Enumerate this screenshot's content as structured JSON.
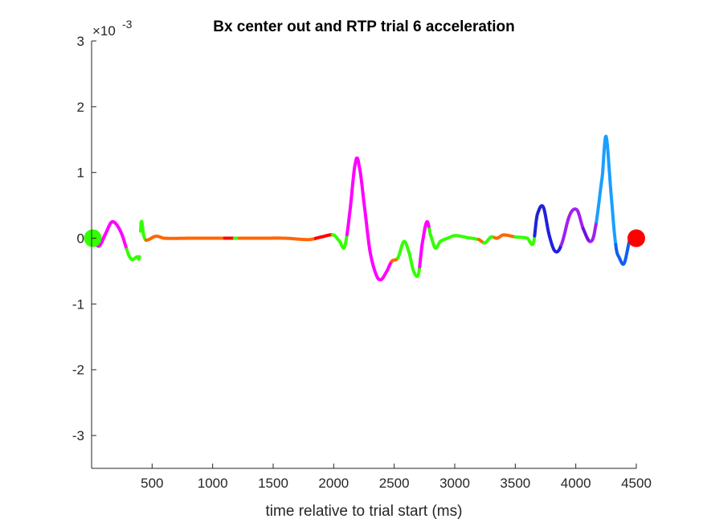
{
  "chart_data": {
    "type": "line",
    "title": "Bx  center out and RTP trial 6 acceleration",
    "xlabel": "time relative to trial start (ms)",
    "ylabel": "",
    "xlim": [
      0,
      4500
    ],
    "ylim": [
      -0.0035,
      0.003
    ],
    "y_exponent_label": "×10",
    "y_exponent": "-3",
    "xticks": [
      500,
      1000,
      1500,
      2000,
      2500,
      3000,
      3500,
      4000,
      4500
    ],
    "xtick_labels": [
      "500",
      "1000",
      "1500",
      "2000",
      "2500",
      "3000",
      "3500",
      "4000",
      "4500"
    ],
    "yticks": [
      -3,
      -2,
      -1,
      0,
      1,
      2,
      3
    ],
    "ytick_labels": [
      "-3",
      "-2",
      "-1",
      "0",
      "1",
      "2",
      "3"
    ],
    "grid": false,
    "legend": "none",
    "y_units_scale": 0.001,
    "curve_points": [
      [
        0,
        0
      ],
      [
        60,
        -0.12
      ],
      [
        110,
        0.05
      ],
      [
        170,
        0.25
      ],
      [
        240,
        0.1
      ],
      [
        320,
        -0.3
      ],
      [
        380,
        -0.28
      ],
      [
        395,
        -0.28
      ],
      [
        410,
        0.25
      ],
      [
        430,
        0.05
      ],
      [
        450,
        -0.03
      ],
      [
        530,
        0.03
      ],
      [
        600,
        0
      ],
      [
        800,
        0
      ],
      [
        1000,
        0
      ],
      [
        1200,
        0
      ],
      [
        1400,
        0
      ],
      [
        1600,
        0
      ],
      [
        1800,
        -0.02
      ],
      [
        1900,
        0.02
      ],
      [
        2000,
        0.05
      ],
      [
        2050,
        -0.05
      ],
      [
        2090,
        -0.13
      ],
      [
        2130,
        0.35
      ],
      [
        2180,
        1.15
      ],
      [
        2210,
        1.1
      ],
      [
        2260,
        0.4
      ],
      [
        2300,
        -0.2
      ],
      [
        2350,
        -0.55
      ],
      [
        2390,
        -0.63
      ],
      [
        2440,
        -0.5
      ],
      [
        2480,
        -0.35
      ],
      [
        2530,
        -0.3
      ],
      [
        2580,
        -0.05
      ],
      [
        2620,
        -0.2
      ],
      [
        2660,
        -0.5
      ],
      [
        2700,
        -0.55
      ],
      [
        2730,
        -0.1
      ],
      [
        2770,
        0.25
      ],
      [
        2800,
        0.05
      ],
      [
        2840,
        -0.15
      ],
      [
        2880,
        -0.05
      ],
      [
        2940,
        0
      ],
      [
        3000,
        0.04
      ],
      [
        3050,
        0.03
      ],
      [
        3100,
        0.01
      ],
      [
        3200,
        -0.02
      ],
      [
        3250,
        -0.07
      ],
      [
        3300,
        0.02
      ],
      [
        3350,
        0.0
      ],
      [
        3400,
        0.05
      ],
      [
        3500,
        0.02
      ],
      [
        3600,
        0
      ],
      [
        3650,
        -0.08
      ],
      [
        3680,
        0.35
      ],
      [
        3730,
        0.48
      ],
      [
        3780,
        0.05
      ],
      [
        3830,
        -0.2
      ],
      [
        3880,
        -0.1
      ],
      [
        3950,
        0.35
      ],
      [
        4010,
        0.43
      ],
      [
        4060,
        0.15
      ],
      [
        4120,
        -0.05
      ],
      [
        4160,
        0.15
      ],
      [
        4220,
        0.95
      ],
      [
        4250,
        1.55
      ],
      [
        4290,
        0.7
      ],
      [
        4330,
        -0.1
      ],
      [
        4360,
        -0.3
      ],
      [
        4400,
        -0.38
      ],
      [
        4450,
        0.0
      ],
      [
        4500,
        0
      ]
    ],
    "segments": [
      {
        "x_from": 0,
        "x_to": 60,
        "color": "#a020f0"
      },
      {
        "x_from": 60,
        "x_to": 290,
        "color": "#ff00ff"
      },
      {
        "x_from": 290,
        "x_to": 395,
        "color": "#33ff00"
      },
      {
        "x_from": 405,
        "x_to": 450,
        "color": "#33ff00"
      },
      {
        "x_from": 450,
        "x_to": 1100,
        "color": "#ff6600"
      },
      {
        "x_from": 1100,
        "x_to": 1180,
        "color": "#ff0000"
      },
      {
        "x_from": 1180,
        "x_to": 1220,
        "color": "#33ff00"
      },
      {
        "x_from": 1220,
        "x_to": 1850,
        "color": "#ff6600"
      },
      {
        "x_from": 1850,
        "x_to": 1990,
        "color": "#ff0000"
      },
      {
        "x_from": 1990,
        "x_to": 2110,
        "color": "#33ff00"
      },
      {
        "x_from": 2110,
        "x_to": 2480,
        "color": "#ff00ff"
      },
      {
        "x_from": 2480,
        "x_to": 2530,
        "color": "#ff6600"
      },
      {
        "x_from": 2530,
        "x_to": 2710,
        "color": "#33ff00"
      },
      {
        "x_from": 2710,
        "x_to": 2790,
        "color": "#ff00ff"
      },
      {
        "x_from": 2790,
        "x_to": 3200,
        "color": "#33ff00"
      },
      {
        "x_from": 3200,
        "x_to": 3240,
        "color": "#ff6600"
      },
      {
        "x_from": 3240,
        "x_to": 3330,
        "color": "#33ff00"
      },
      {
        "x_from": 3330,
        "x_to": 3500,
        "color": "#ff6600"
      },
      {
        "x_from": 3500,
        "x_to": 3660,
        "color": "#33ff00"
      },
      {
        "x_from": 3660,
        "x_to": 3880,
        "color": "#2020dd"
      },
      {
        "x_from": 3880,
        "x_to": 4060,
        "color": "#a020f0"
      },
      {
        "x_from": 4060,
        "x_to": 4120,
        "color": "#7010e0"
      },
      {
        "x_from": 4120,
        "x_to": 4170,
        "color": "#a020f0"
      },
      {
        "x_from": 4170,
        "x_to": 4330,
        "color": "#1a9fff"
      },
      {
        "x_from": 4330,
        "x_to": 4450,
        "color": "#1060f0"
      }
    ],
    "markers": [
      {
        "x": 10,
        "y": 0,
        "color": "#33ff00",
        "label": "start"
      },
      {
        "x": 4500,
        "y": 0,
        "color": "#ff0000",
        "label": "end"
      }
    ]
  }
}
